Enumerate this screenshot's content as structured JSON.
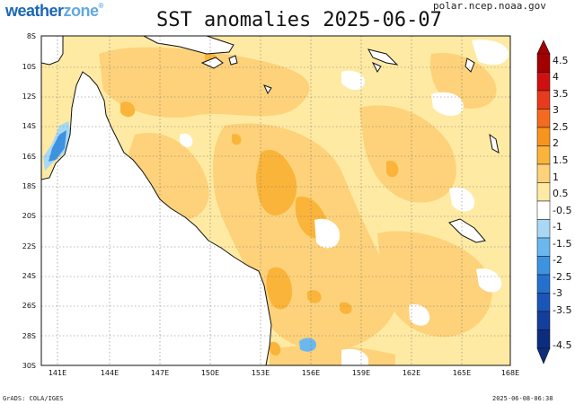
{
  "brand": {
    "name_part1": "weather",
    "name_part2": "zone",
    "mark": "®"
  },
  "title": "SST anomalies 2025-06-07",
  "source": "polar.ncep.noaa.gov",
  "footer": {
    "left": "GrADS: COLA/IGES",
    "right": "2025-06-08-06:38"
  },
  "map": {
    "lon_labels": [
      "141E",
      "144E",
      "147E",
      "150E",
      "153E",
      "156E",
      "159E",
      "162E",
      "165E",
      "168E"
    ],
    "lat_labels": [
      "8S",
      "10S",
      "12S",
      "14S",
      "16S",
      "18S",
      "20S",
      "22S",
      "24S",
      "26S",
      "28S",
      "30S"
    ],
    "land_color": "#ffffff",
    "grid": "dotted"
  },
  "colorbar": {
    "levels": [
      "4.5",
      "4",
      "3.5",
      "3",
      "2.5",
      "2",
      "1.5",
      "1",
      "0.5",
      "-0.5",
      "-1",
      "-1.5",
      "-2",
      "-2.5",
      "-3",
      "-3.5",
      "-4.5"
    ],
    "colors": [
      "#a50000",
      "#d01010",
      "#e83a1c",
      "#f26b1e",
      "#f8941d",
      "#fbb43a",
      "#fdd27a",
      "#ffeaa3",
      "#ffffff",
      "#a8d8f5",
      "#6ab8ef",
      "#3c93e2",
      "#2470cf",
      "#1a55b8",
      "#123f9c",
      "#0c2d7f"
    ]
  }
}
